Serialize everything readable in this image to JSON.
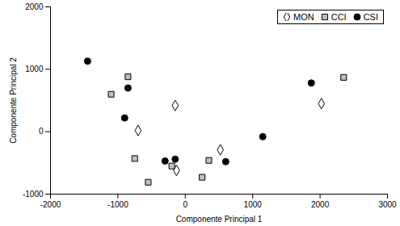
{
  "chart_data": {
    "type": "scatter",
    "x_label": "Componente Principal 1",
    "y_label": "Componente Principal 2",
    "xlim": [
      -2000,
      3000
    ],
    "xticks": [
      -2000,
      -1000,
      0,
      1000,
      2000,
      3000
    ],
    "ylim": [
      -1000,
      2000
    ],
    "yticks": [
      -1000,
      0,
      1000,
      2000
    ],
    "grid": false,
    "legend": "top-right",
    "series": [
      {
        "name": "MON",
        "color": "#ffffff",
        "marker": "diamond",
        "x": [
          -150,
          -700,
          -130,
          520,
          2020
        ],
        "values": [
          420,
          20,
          -620,
          -290,
          450
        ]
      },
      {
        "name": "CCI",
        "color": "#bfbfbf",
        "marker": "square",
        "x": [
          -850,
          -1100,
          -750,
          -200,
          -550,
          250,
          350,
          2350
        ],
        "values": [
          880,
          600,
          -430,
          -550,
          -810,
          -730,
          -460,
          870
        ]
      },
      {
        "name": "CSI",
        "color": "#000000",
        "marker": "circle",
        "x": [
          -1450,
          -850,
          -900,
          -300,
          -150,
          600,
          1150,
          1870
        ],
        "values": [
          1130,
          700,
          220,
          -470,
          -440,
          -480,
          -80,
          780
        ]
      }
    ]
  }
}
